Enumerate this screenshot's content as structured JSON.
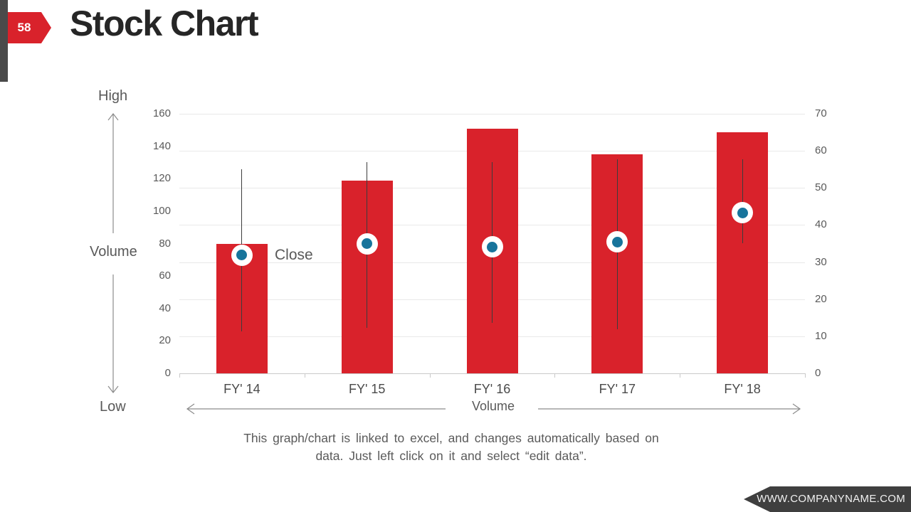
{
  "slide": {
    "page_number": "58",
    "title": "Stock Chart",
    "footer": {
      "line1": "This graph/chart is linked to excel, and changes automatically based on",
      "line2": "data. Just left click on it and select “edit data”."
    },
    "website": "WWW.COMPANYNAME.COM"
  },
  "annotations": {
    "high_label": "High",
    "volume_left_label": "Volume",
    "low_label": "Low",
    "close_label": "Close",
    "volume_bottom_label": "Volume"
  },
  "colors": {
    "accent_red": "#D9222B",
    "marker_blue": "#17749B",
    "title_dark": "#262626",
    "text_gray": "#595959",
    "strip_dark": "#4A4A4A",
    "banner_dark": "#3F3F3F",
    "gridline": "#E9E9E9",
    "axis_line": "#C9C9C9"
  },
  "chart_data": {
    "type": "bar",
    "subtype": "stock volume-high-low-close",
    "title": "",
    "categories": [
      "FY' 14",
      "FY' 15",
      "FY' 16",
      "FY' 17",
      "FY' 18"
    ],
    "series": [
      {
        "name": "Volume",
        "render": "bar",
        "axis": "right",
        "values": [
          35,
          52,
          66,
          59,
          65
        ]
      },
      {
        "name": "High",
        "render": "range-top",
        "axis": "left",
        "values": [
          126,
          130,
          130,
          132,
          132
        ]
      },
      {
        "name": "Low",
        "render": "range-bottom",
        "axis": "left",
        "values": [
          26,
          28,
          31,
          27,
          80
        ]
      },
      {
        "name": "Close",
        "render": "marker",
        "axis": "left",
        "values": [
          73,
          80,
          78,
          81,
          99
        ]
      }
    ],
    "left_axis": {
      "range": [
        0,
        160
      ],
      "ticks": [
        0,
        20,
        40,
        60,
        80,
        100,
        120,
        140,
        160
      ]
    },
    "right_axis": {
      "range": [
        0,
        70
      ],
      "ticks": [
        0,
        10,
        20,
        30,
        40,
        50,
        60,
        70
      ]
    },
    "grid": "horizontal gridlines aligned to right-axis ticks",
    "legend": "none"
  }
}
